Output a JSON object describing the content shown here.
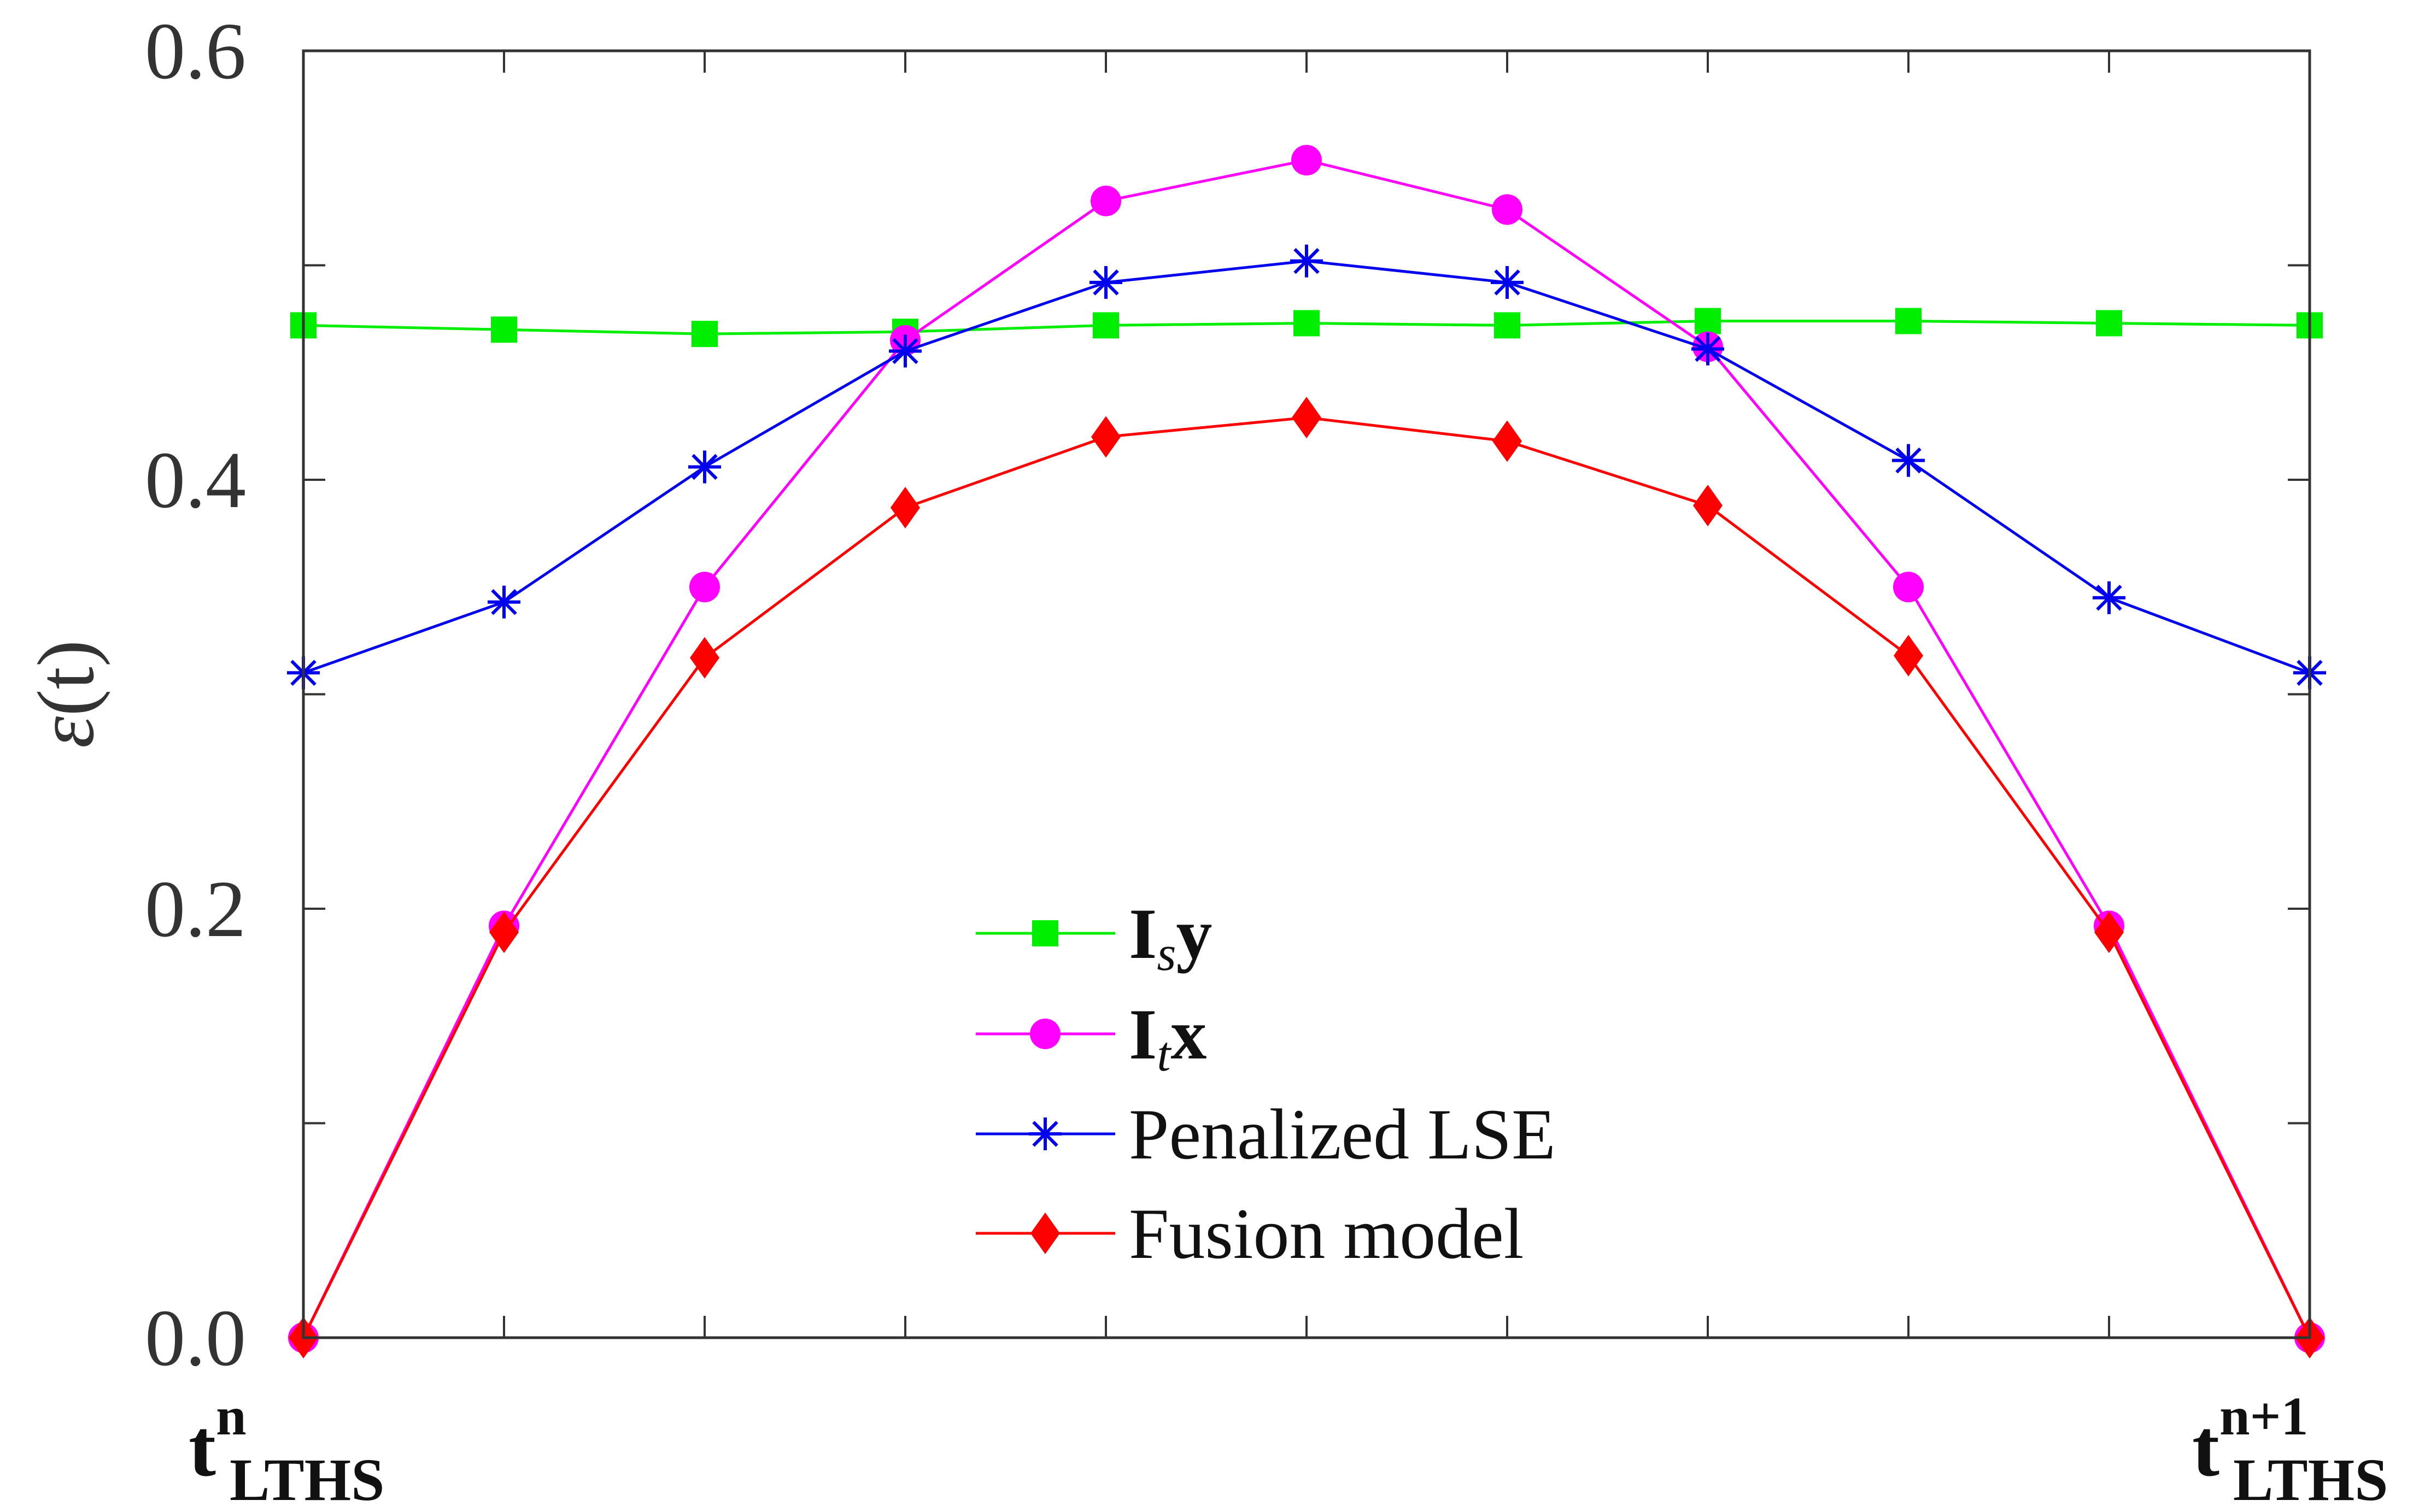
{
  "chart_data": {
    "type": "line",
    "x": [
      0,
      1,
      2,
      3,
      4,
      5,
      6,
      7,
      8,
      9,
      10
    ],
    "xlim": [
      0,
      10
    ],
    "ylim": [
      0,
      0.6
    ],
    "yticks": [
      0.0,
      0.1,
      0.2,
      0.3,
      0.4,
      0.5,
      0.6
    ],
    "ytick_labels": [
      "0.0",
      "",
      "0.2",
      "",
      "0.4",
      "",
      "0.6"
    ],
    "ylabel": {
      "symbol": "ε",
      "rest": "(t)"
    },
    "x_endpoint_labels": {
      "start": {
        "base": "t",
        "sup": "n",
        "sub": "LTHS"
      },
      "end": {
        "base": "t",
        "sup": "n+1",
        "sub": "LTHS"
      }
    },
    "grid": false,
    "legend_position": "bottom-center",
    "series": [
      {
        "name": "Isy",
        "legend": {
          "main": "I",
          "sub": "s",
          "tail": "y"
        },
        "color": "#00ee00",
        "marker": "square",
        "values": [
          0.472,
          0.47,
          0.468,
          0.469,
          0.472,
          0.473,
          0.472,
          0.474,
          0.474,
          0.473,
          0.472
        ]
      },
      {
        "name": "Itx",
        "legend": {
          "main": "I",
          "sub": "t",
          "tail": "x"
        },
        "color": "#ff00ff",
        "marker": "circle",
        "values": [
          0.0,
          0.192,
          0.35,
          0.465,
          0.53,
          0.549,
          0.526,
          0.462,
          0.35,
          0.192,
          0.0
        ]
      },
      {
        "name": "Penalized LSE",
        "legend": {
          "main": "Penalized LSE",
          "sub": "",
          "tail": ""
        },
        "color": "#0000ee",
        "marker": "asterisk",
        "values": [
          0.31,
          0.343,
          0.406,
          0.46,
          0.492,
          0.502,
          0.492,
          0.461,
          0.409,
          0.345,
          0.31
        ]
      },
      {
        "name": "Fusion model",
        "legend": {
          "main": "Fusion model",
          "sub": "",
          "tail": ""
        },
        "color": "#ff0000",
        "marker": "diamond",
        "values": [
          0.0,
          0.189,
          0.317,
          0.387,
          0.42,
          0.429,
          0.418,
          0.388,
          0.318,
          0.189,
          0.0
        ]
      }
    ]
  }
}
